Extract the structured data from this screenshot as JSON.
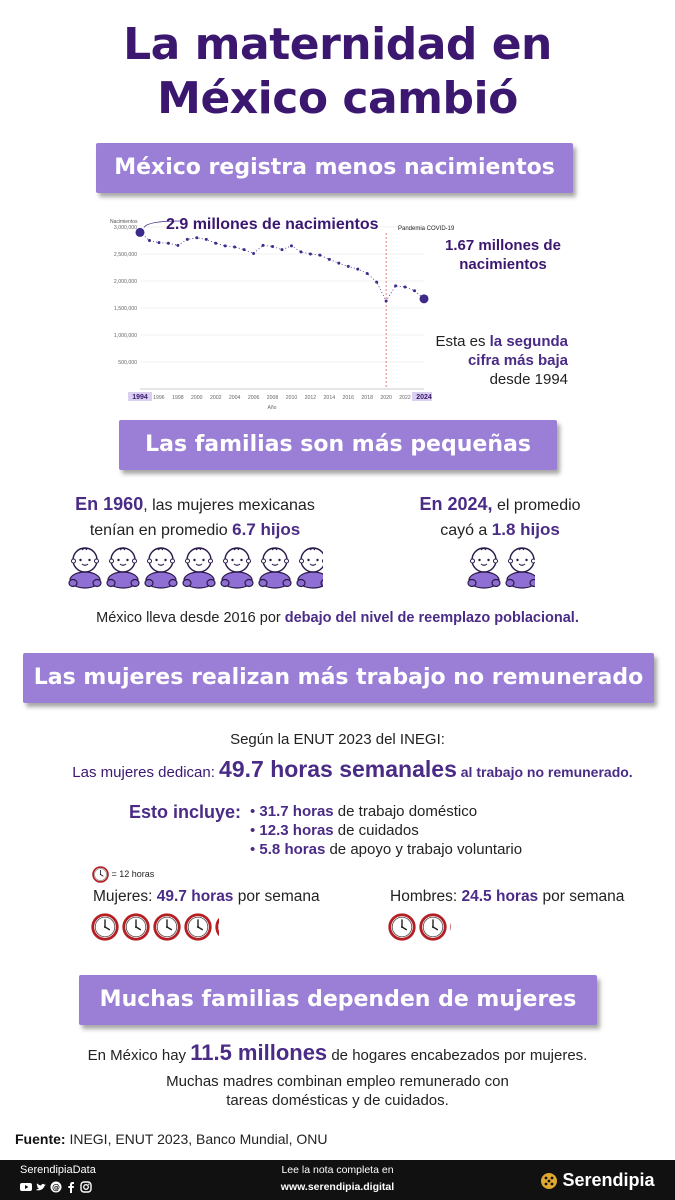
{
  "title_line1": "La maternidad en",
  "title_line2": "México cambió",
  "section1": {
    "banner": "México registra menos nacimientos",
    "annotation_top": "2.9 millones de nacimientos",
    "annotation_right_1": "1.67 millones de",
    "annotation_right_2": "nacimientos",
    "note_1a": "Esta es ",
    "note_1b": "la segunda",
    "note_2": "cifra más baja",
    "note_3": "desde 1994",
    "pandemic_label": "Pandemia COVID-19"
  },
  "chart_data": {
    "type": "line",
    "title": "",
    "ylabel": "Nacimientos",
    "xlabel": "Año",
    "ylim": [
      0,
      3000000
    ],
    "yticks": [
      "500,000",
      "1,000,000",
      "1,500,000",
      "2,000,000",
      "2,500,000",
      "3,000,000"
    ],
    "xticks": [
      "1994",
      "1996",
      "1998",
      "2000",
      "2002",
      "2004",
      "2006",
      "2008",
      "2010",
      "2012",
      "2014",
      "2016",
      "2018",
      "2020",
      "2022",
      "2024"
    ],
    "x": [
      1994,
      1995,
      1996,
      1997,
      1998,
      1999,
      2000,
      2001,
      2002,
      2003,
      2004,
      2005,
      2006,
      2007,
      2008,
      2009,
      2010,
      2011,
      2012,
      2013,
      2014,
      2015,
      2016,
      2017,
      2018,
      2019,
      2020,
      2021,
      2022,
      2023,
      2024
    ],
    "series": [
      {
        "values": [
          2900000,
          2750000,
          2710000,
          2700000,
          2660000,
          2770000,
          2800000,
          2770000,
          2700000,
          2650000,
          2630000,
          2580000,
          2510000,
          2660000,
          2640000,
          2580000,
          2650000,
          2540000,
          2500000,
          2480000,
          2400000,
          2330000,
          2270000,
          2220000,
          2140000,
          1980000,
          1630000,
          1910000,
          1890000,
          1820000,
          1670000
        ]
      }
    ],
    "grid": true,
    "legend": "none"
  },
  "section2": {
    "banner": "Las familias son más pequeñas",
    "left_1a": "En 1960",
    "left_1b": ", las mujeres mexicanas",
    "left_2a": "tenían en promedio ",
    "left_2b": "6.7 hijos",
    "right_1a": "En 2024,",
    "right_1b": " el promedio",
    "right_2a": "cayó a ",
    "right_2b": "1.8 hijos",
    "children_1960": 6.7,
    "children_2024": 1.8,
    "baby_icon": "baby-icon",
    "note_a": "México lleva desde 2016 por ",
    "note_b": "debajo del nivel de reemplazo poblacional."
  },
  "section3": {
    "banner": "Las mujeres realizan más trabajo no remunerado",
    "source_line": "Según la ENUT 2023 del INEGI:",
    "dedicate_a": "Las mujeres dedican: ",
    "dedicate_b": "49.7 horas semanales",
    "dedicate_c": " al trabajo no remunerado.",
    "includes_label": "Esto incluye:",
    "items": [
      {
        "hours": "31.7 horas",
        "text": " de trabajo doméstico"
      },
      {
        "hours": "12.3 horas",
        "text": " de cuidados"
      },
      {
        "hours": "5.8 horas",
        "text": " de apoyo y trabajo voluntario"
      }
    ],
    "bullet": "•",
    "clock_legend": "= 12 horas",
    "women_a": "Mujeres: ",
    "women_b": "49.7 horas",
    "women_c": " por semana",
    "men_a": "Hombres: ",
    "men_b": "24.5 horas",
    "men_c": " por semana",
    "women_hours": 49.7,
    "men_hours": 24.5,
    "clock_unit_hours": 12,
    "clock_icon": "clock-icon"
  },
  "section4": {
    "banner": "Muchas familias dependen de mujeres",
    "line1a": "En México hay ",
    "line1b": "11.5 millones",
    "line1c": " de hogares encabezados por mujeres.",
    "line2": "Muchas madres combinan empleo remunerado con",
    "line3": "tareas domésticas y de cuidados."
  },
  "source": {
    "label": "Fuente:",
    "text": " INEGI,  ENUT 2023, Banco Mundial, ONU"
  },
  "footer": {
    "handle": "SerendipiaData",
    "social_icons": [
      "youtube-icon",
      "twitter-icon",
      "threads-icon",
      "facebook-icon",
      "instagram-icon"
    ],
    "read_more": "Lee la nota completa en",
    "url": "www.serendipia.digital",
    "brand": "Serendipia"
  },
  "colors": {
    "title": "#3b1770",
    "banner": "#9b7ed6",
    "accent": "#4a2b86",
    "line": "#3d2a8a",
    "clock_ring": "#b51f24",
    "footer_bg": "#111111"
  }
}
